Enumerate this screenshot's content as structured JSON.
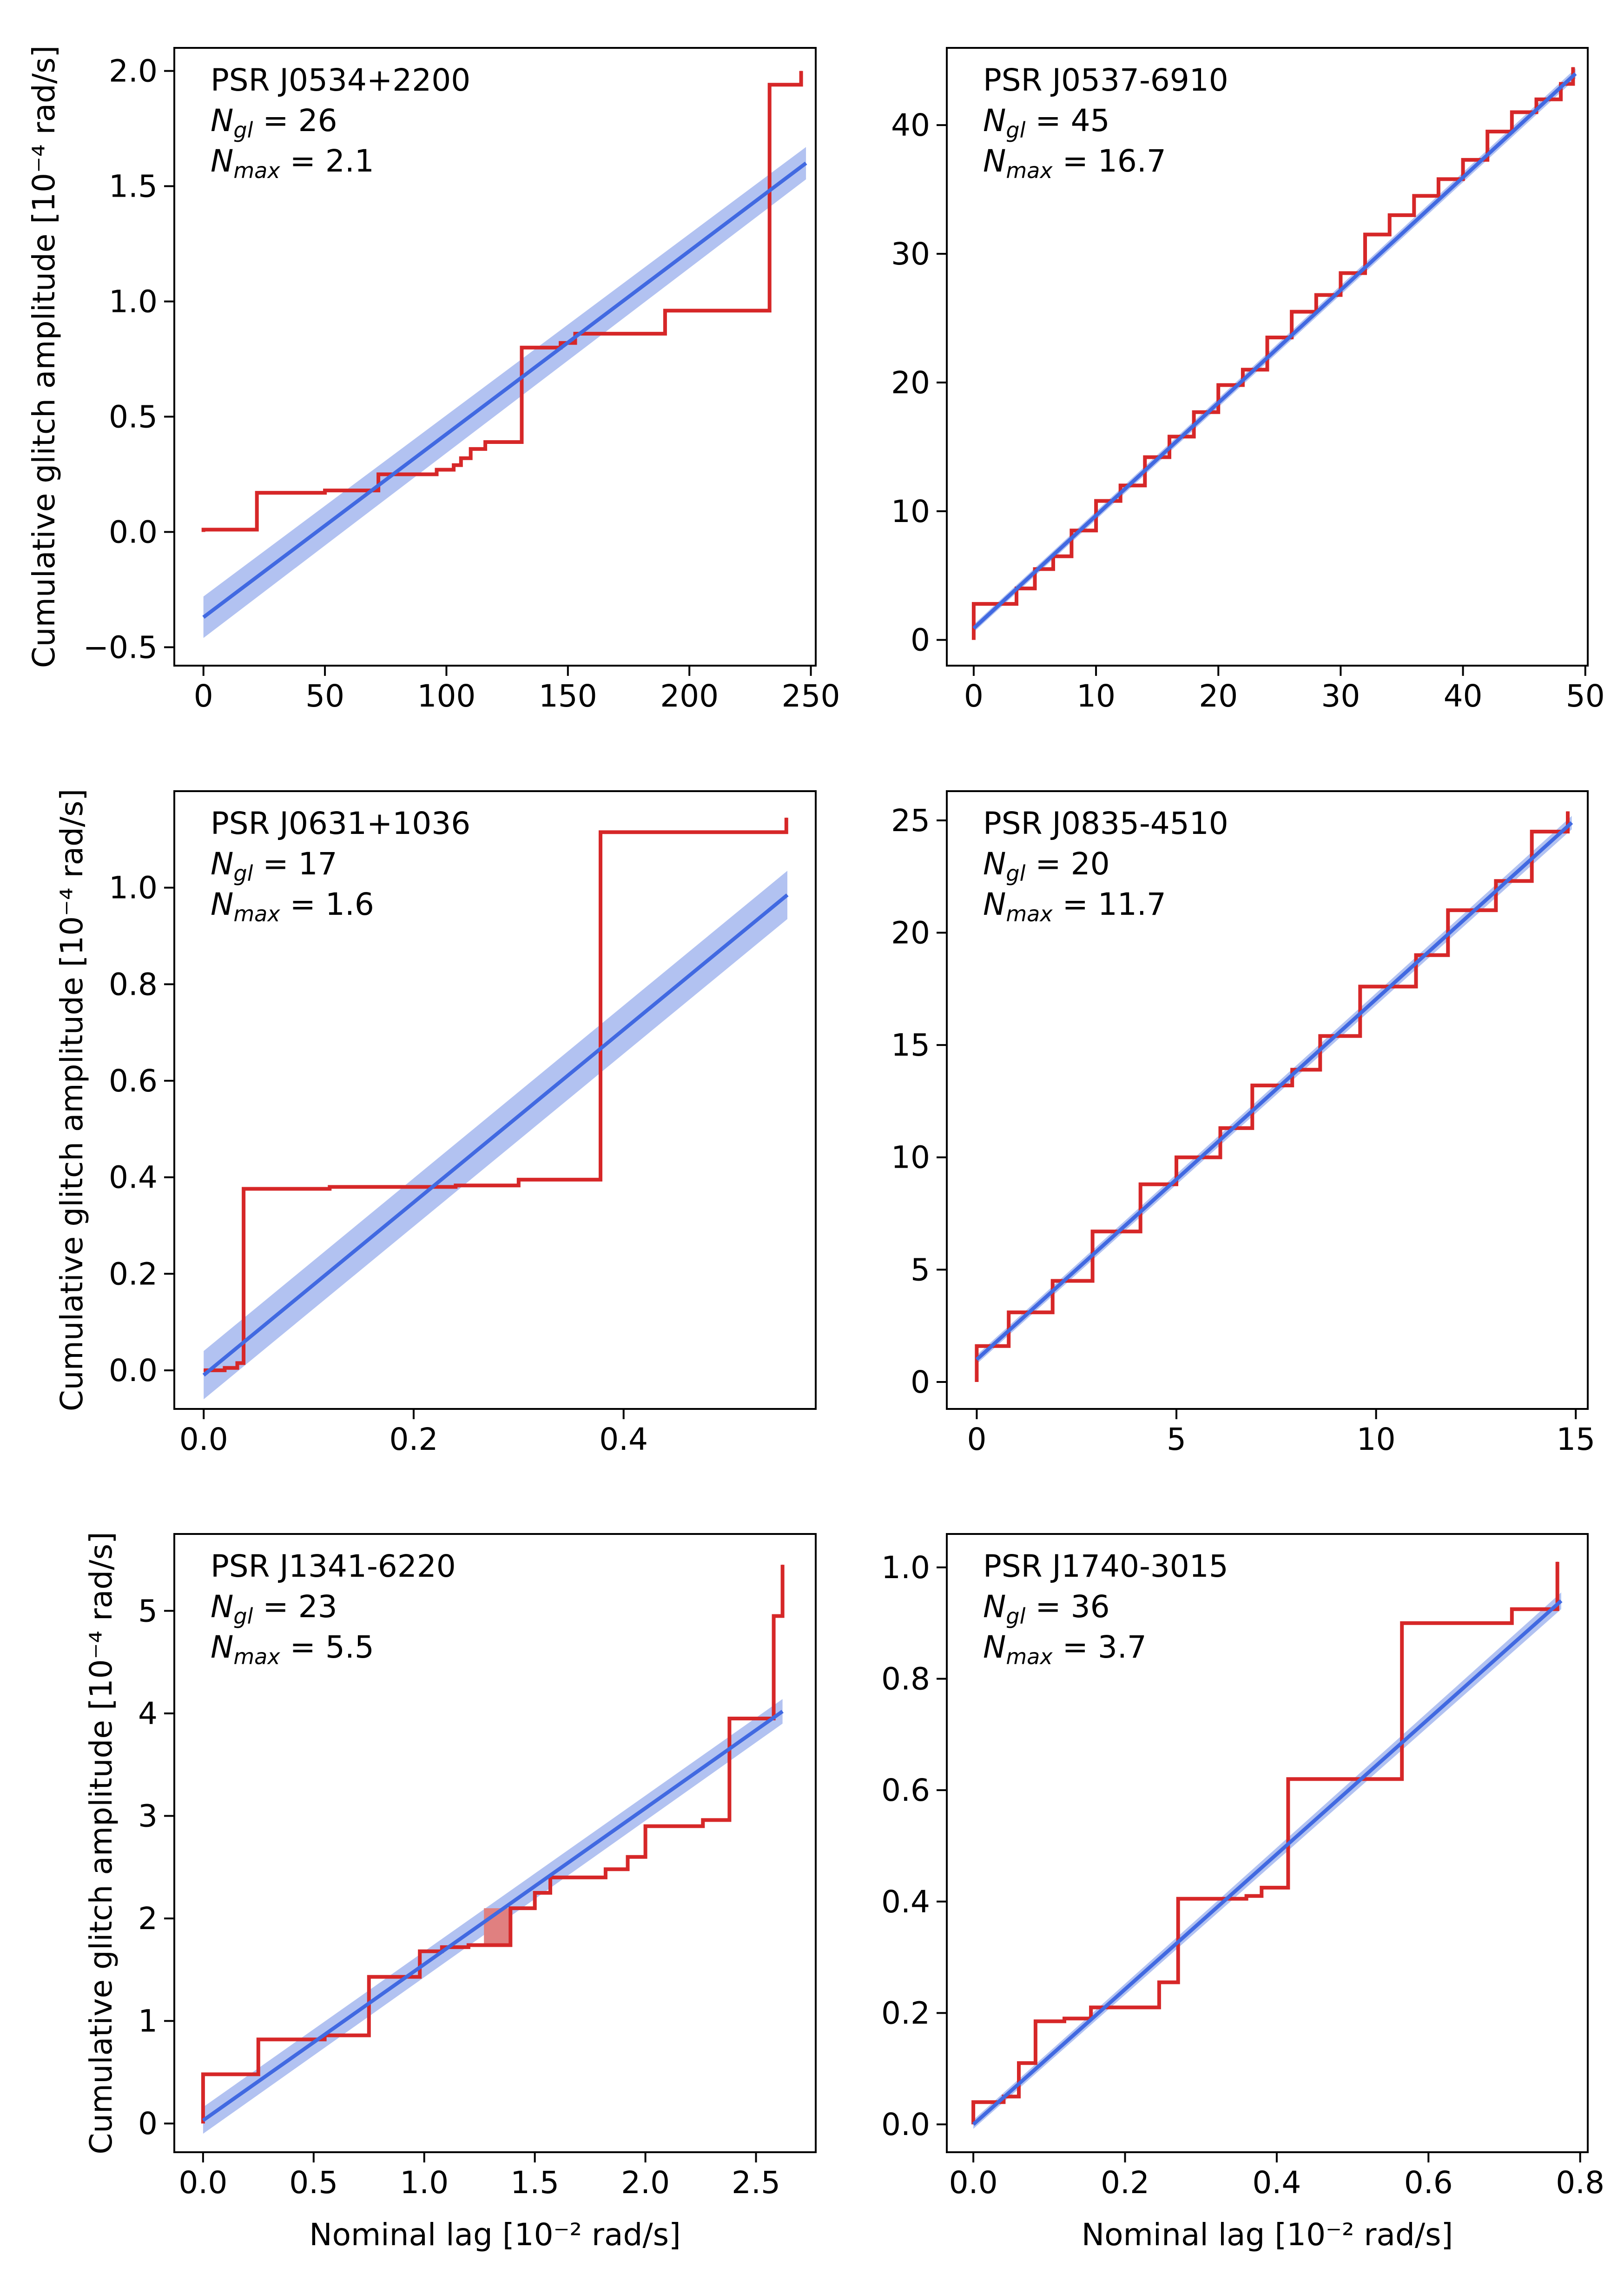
{
  "figure": {
    "colors": {
      "step": "#d62728",
      "fit": "#4169e1",
      "band": "#aebff0",
      "fill": "#e08080"
    },
    "shared_xlabel": "Nominal lag [10⁻² rad/s]",
    "shared_ylabel": "Cumulative glitch amplitude [10⁻⁴ rad/s]"
  },
  "chart_data": [
    {
      "type": "line",
      "name": "PSR J0534+2200",
      "title": "PSR J0534+2200",
      "annotations": [
        {
          "label": "N",
          "sub": "gl",
          "value": "= 26"
        },
        {
          "label": "N",
          "sub": "max",
          "value": "= 2.1"
        }
      ],
      "xlabel": "",
      "ylabel": "Cumulative glitch amplitude [10⁻⁴ rad/s]",
      "xlim": [
        -12,
        252
      ],
      "ylim": [
        -0.58,
        2.1
      ],
      "xticks": [
        0,
        50,
        100,
        150,
        200,
        250
      ],
      "xtick_labels": [
        "0",
        "50",
        "100",
        "150",
        "200",
        "250"
      ],
      "yticks": [
        -0.5,
        0.0,
        0.5,
        1.0,
        1.5,
        2.0
      ],
      "ytick_labels": [
        "−0.5",
        "0.0",
        "0.5",
        "1.0",
        "1.5",
        "2.0"
      ],
      "series": [
        {
          "name": "cumulative glitch amplitude",
          "kind": "step",
          "x": [
            0,
            22,
            50,
            72,
            96,
            103,
            106,
            110,
            116,
            131,
            147,
            153,
            190,
            233,
            246
          ],
          "y": [
            0.01,
            0.17,
            0.18,
            0.25,
            0.27,
            0.29,
            0.32,
            0.36,
            0.39,
            0.8,
            0.82,
            0.86,
            0.96,
            1.94,
            2.0
          ]
        },
        {
          "name": "linear fit",
          "kind": "line",
          "x": [
            0,
            248
          ],
          "y": [
            -0.37,
            1.6
          ],
          "band_low": [
            -0.46,
            1.53
          ],
          "band_high": [
            -0.28,
            1.67
          ]
        }
      ]
    },
    {
      "type": "line",
      "name": "PSR J0537-6910",
      "title": "PSR J0537-6910",
      "annotations": [
        {
          "label": "N",
          "sub": "gl",
          "value": "= 45"
        },
        {
          "label": "N",
          "sub": "max",
          "value": "= 16.7"
        }
      ],
      "xlabel": "",
      "ylabel": "",
      "xlim": [
        -2.2,
        50.2
      ],
      "ylim": [
        -2,
        46
      ],
      "xticks": [
        0,
        10,
        20,
        30,
        40,
        50
      ],
      "xtick_labels": [
        "0",
        "10",
        "20",
        "30",
        "40",
        "50"
      ],
      "yticks": [
        0,
        10,
        20,
        30,
        40
      ],
      "ytick_labels": [
        "0",
        "10",
        "20",
        "30",
        "40"
      ],
      "series": [
        {
          "name": "cumulative glitch amplitude",
          "kind": "step",
          "x": [
            0,
            3.5,
            5,
            6.5,
            8,
            10,
            12,
            14,
            16,
            18,
            20,
            22,
            24,
            26,
            28,
            30,
            32,
            34,
            36,
            38,
            40,
            42,
            44,
            46,
            48,
            49
          ],
          "y": [
            2.8,
            4.0,
            5.5,
            6.5,
            8.5,
            10.8,
            12.0,
            14.2,
            15.8,
            17.7,
            19.8,
            21.0,
            23.5,
            25.5,
            26.8,
            28.5,
            31.5,
            33.0,
            34.5,
            35.8,
            37.3,
            39.5,
            41.0,
            42.0,
            43.2,
            44.5
          ]
        },
        {
          "name": "linear fit",
          "kind": "line",
          "x": [
            0,
            49.2
          ],
          "y": [
            0.9,
            44.0
          ],
          "band_low": [
            0.6,
            43.6
          ],
          "band_high": [
            1.2,
            44.4
          ]
        }
      ]
    },
    {
      "type": "line",
      "name": "PSR J0631+1036",
      "title": "PSR J0631+1036",
      "annotations": [
        {
          "label": "N",
          "sub": "gl",
          "value": "= 17"
        },
        {
          "label": "N",
          "sub": "max",
          "value": "= 1.6"
        }
      ],
      "xlabel": "",
      "ylabel": "Cumulative glitch amplitude [10⁻⁴ rad/s]",
      "xlim": [
        -0.028,
        0.583
      ],
      "ylim": [
        -0.08,
        1.2
      ],
      "xticks": [
        0.0,
        0.2,
        0.4
      ],
      "xtick_labels": [
        "0.0",
        "0.2",
        "0.4"
      ],
      "yticks": [
        0.0,
        0.2,
        0.4,
        0.6,
        0.8,
        1.0
      ],
      "ytick_labels": [
        "0.0",
        "0.2",
        "0.4",
        "0.6",
        "0.8",
        "1.0"
      ],
      "series": [
        {
          "name": "cumulative glitch amplitude",
          "kind": "step",
          "x": [
            0,
            0.02,
            0.032,
            0.038,
            0.12,
            0.24,
            0.3,
            0.378,
            0.555
          ],
          "y": [
            0.0,
            0.005,
            0.015,
            0.376,
            0.38,
            0.383,
            0.395,
            1.115,
            1.145
          ]
        },
        {
          "name": "linear fit",
          "kind": "line",
          "x": [
            0,
            0.556
          ],
          "y": [
            -0.01,
            0.985
          ],
          "band_low": [
            -0.06,
            0.935
          ],
          "band_high": [
            0.04,
            1.035
          ]
        }
      ]
    },
    {
      "type": "line",
      "name": "PSR J0835-4510",
      "title": "PSR J0835-4510",
      "annotations": [
        {
          "label": "N",
          "sub": "gl",
          "value": "= 20"
        },
        {
          "label": "N",
          "sub": "max",
          "value": "= 11.7"
        }
      ],
      "xlabel": "",
      "ylabel": "",
      "xlim": [
        -0.75,
        15.3
      ],
      "ylim": [
        -1.2,
        26.3
      ],
      "xticks": [
        0,
        5,
        10,
        15
      ],
      "xtick_labels": [
        "0",
        "5",
        "10",
        "15"
      ],
      "yticks": [
        0,
        5,
        10,
        15,
        20,
        25
      ],
      "ytick_labels": [
        "0",
        "5",
        "10",
        "15",
        "20",
        "25"
      ],
      "series": [
        {
          "name": "cumulative glitch amplitude",
          "kind": "step",
          "x": [
            0,
            0.8,
            1.9,
            2.9,
            4.1,
            5.0,
            6.1,
            6.9,
            7.9,
            8.6,
            9.6,
            11.0,
            11.8,
            13.0,
            13.9,
            14.8
          ],
          "y": [
            1.6,
            3.1,
            4.5,
            6.7,
            8.8,
            10.0,
            11.3,
            13.2,
            13.9,
            15.4,
            17.6,
            19.0,
            21.0,
            22.3,
            24.5,
            25.4
          ]
        },
        {
          "name": "linear fit",
          "kind": "line",
          "x": [
            0,
            14.9
          ],
          "y": [
            1.0,
            24.9
          ],
          "band_low": [
            0.8,
            24.6
          ],
          "band_high": [
            1.2,
            25.2
          ]
        }
      ]
    },
    {
      "type": "line",
      "name": "PSR J1341-6220",
      "title": "PSR J1341-6220",
      "annotations": [
        {
          "label": "N",
          "sub": "gl",
          "value": "= 23"
        },
        {
          "label": "N",
          "sub": "max",
          "value": "= 5.5"
        }
      ],
      "xlabel": "Nominal lag [10⁻² rad/s]",
      "ylabel": "Cumulative glitch amplitude [10⁻⁴ rad/s]",
      "xlim": [
        -0.13,
        2.77
      ],
      "ylim": [
        -0.28,
        5.75
      ],
      "xticks": [
        0.0,
        0.5,
        1.0,
        1.5,
        2.0,
        2.5
      ],
      "xtick_labels": [
        "0.0",
        "0.5",
        "1.0",
        "1.5",
        "2.0",
        "2.5"
      ],
      "yticks": [
        0,
        1,
        2,
        3,
        4,
        5
      ],
      "ytick_labels": [
        "0",
        "1",
        "2",
        "3",
        "4",
        "5"
      ],
      "highlight": {
        "x0": 1.27,
        "x1": 1.39,
        "y_step": 2.1,
        "y_low": 1.74
      },
      "series": [
        {
          "name": "cumulative glitch amplitude",
          "kind": "step",
          "x": [
            0,
            0.25,
            0.55,
            0.75,
            0.98,
            1.08,
            1.2,
            1.39,
            1.5,
            1.57,
            1.82,
            1.92,
            2.0,
            2.26,
            2.38,
            2.58,
            2.62
          ],
          "y": [
            0.48,
            0.82,
            0.86,
            1.43,
            1.68,
            1.72,
            1.74,
            2.1,
            2.25,
            2.4,
            2.48,
            2.6,
            2.9,
            2.96,
            3.95,
            4.95,
            5.45
          ]
        },
        {
          "name": "linear fit",
          "kind": "line",
          "x": [
            0,
            2.62
          ],
          "y": [
            0.03,
            4.02
          ],
          "band_low": [
            -0.1,
            3.9
          ],
          "band_high": [
            0.16,
            4.14
          ]
        }
      ]
    },
    {
      "type": "line",
      "name": "PSR J1740-3015",
      "title": "PSR J1740-3015",
      "annotations": [
        {
          "label": "N",
          "sub": "gl",
          "value": "= 36"
        },
        {
          "label": "N",
          "sub": "max",
          "value": "= 3.7"
        }
      ],
      "xlabel": "Nominal lag [10⁻² rad/s]",
      "ylabel": "",
      "xlim": [
        -0.035,
        0.81
      ],
      "ylim": [
        -0.05,
        1.06
      ],
      "xticks": [
        0.0,
        0.2,
        0.4,
        0.6,
        0.8
      ],
      "xtick_labels": [
        "0.0",
        "0.2",
        "0.4",
        "0.6",
        "0.8"
      ],
      "yticks": [
        0.0,
        0.2,
        0.4,
        0.6,
        0.8,
        1.0
      ],
      "ytick_labels": [
        "0.0",
        "0.2",
        "0.4",
        "0.6",
        "0.8",
        "1.0"
      ],
      "series": [
        {
          "name": "cumulative glitch amplitude",
          "kind": "step",
          "x": [
            0,
            0.04,
            0.06,
            0.082,
            0.12,
            0.155,
            0.245,
            0.27,
            0.36,
            0.38,
            0.415,
            0.565,
            0.71,
            0.77
          ],
          "y": [
            0.04,
            0.05,
            0.11,
            0.185,
            0.19,
            0.21,
            0.255,
            0.405,
            0.41,
            0.425,
            0.62,
            0.9,
            0.925,
            1.01
          ]
        },
        {
          "name": "linear fit",
          "kind": "line",
          "x": [
            0,
            0.775
          ],
          "y": [
            0.0,
            0.94
          ],
          "band_low": [
            -0.008,
            0.925
          ],
          "band_high": [
            0.008,
            0.955
          ]
        }
      ]
    }
  ]
}
